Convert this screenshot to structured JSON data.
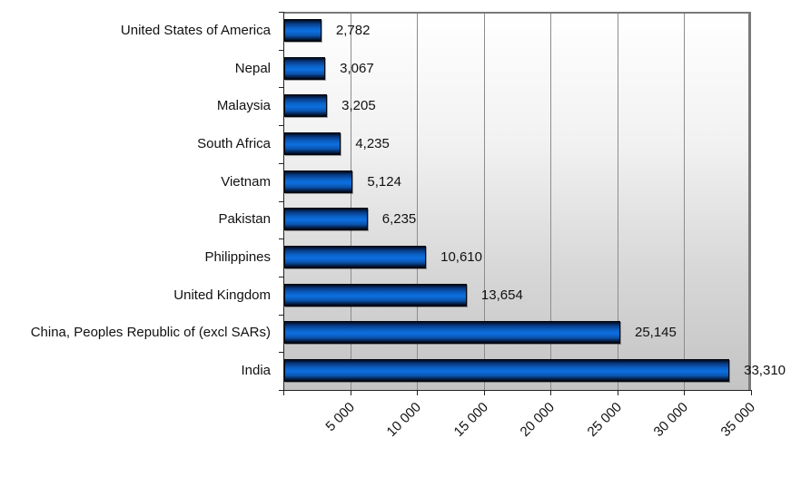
{
  "chart_data": {
    "type": "bar",
    "orientation": "horizontal",
    "title": "",
    "xlabel": "",
    "ylabel": "",
    "categories": [
      "United States of America",
      "Nepal",
      "Malaysia",
      "South Africa",
      "Vietnam",
      "Pakistan",
      "Philippines",
      "United Kingdom",
      "China, Peoples Republic of (excl SARs)",
      "India"
    ],
    "values": [
      2782,
      3067,
      3205,
      4235,
      5124,
      6235,
      10610,
      13654,
      25145,
      33310
    ],
    "value_labels": [
      "2,782",
      "3,067",
      "3,205",
      "4,235",
      "5,124",
      "6,235",
      "10,610",
      "13,654",
      "25,145",
      "33,310"
    ],
    "xlim": [
      0,
      35000
    ],
    "x_ticks": [
      5000,
      10000,
      15000,
      20000,
      25000,
      30000,
      35000
    ],
    "x_tick_labels": [
      "5 000",
      "10 000",
      "15 000",
      "20 000",
      "25 000",
      "30 000",
      "35 000"
    ],
    "grid": {
      "vertical": true,
      "horizontal": false
    },
    "legend": null,
    "colors": {
      "bar": "#0b63c9",
      "bar_border": "#02070f",
      "plot_bg_top": "#ffffff",
      "plot_bg_bottom": "#c4c4c4",
      "gridline": "#8c8c8c"
    }
  }
}
